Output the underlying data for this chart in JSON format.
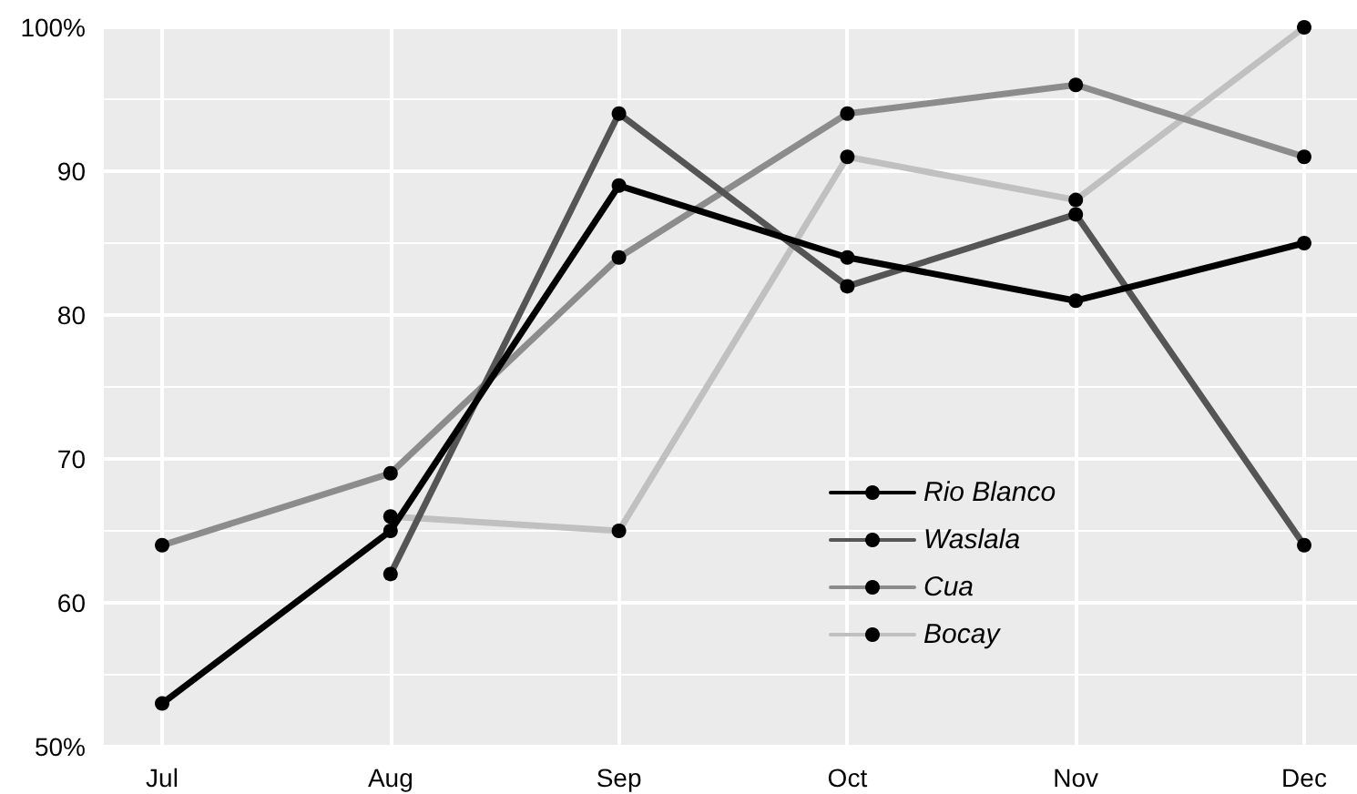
{
  "chart_data": {
    "type": "line",
    "categories": [
      "Jul",
      "Aug",
      "Sep",
      "Oct",
      "Nov",
      "Dec"
    ],
    "series": [
      {
        "name": "Rio Blanco",
        "color": "#000000",
        "values": [
          53,
          65,
          89,
          84,
          81,
          85
        ]
      },
      {
        "name": "Waslala",
        "color": "#555555",
        "values": [
          null,
          62,
          94,
          82,
          87,
          64
        ]
      },
      {
        "name": "Cua",
        "color": "#8c8c8c",
        "values": [
          64,
          69,
          84,
          94,
          96,
          91
        ]
      },
      {
        "name": "Bocay",
        "color": "#c0c0c0",
        "values": [
          null,
          66,
          65,
          91,
          88,
          100
        ]
      }
    ],
    "ylim": [
      50,
      100
    ],
    "yticks": [
      {
        "value": 50,
        "label": "50%"
      },
      60,
      70,
      80,
      90,
      {
        "value": 100,
        "label": "100%"
      }
    ],
    "grid": true,
    "legend": "bottom right",
    "marker": "circle",
    "line_style": "solid"
  }
}
